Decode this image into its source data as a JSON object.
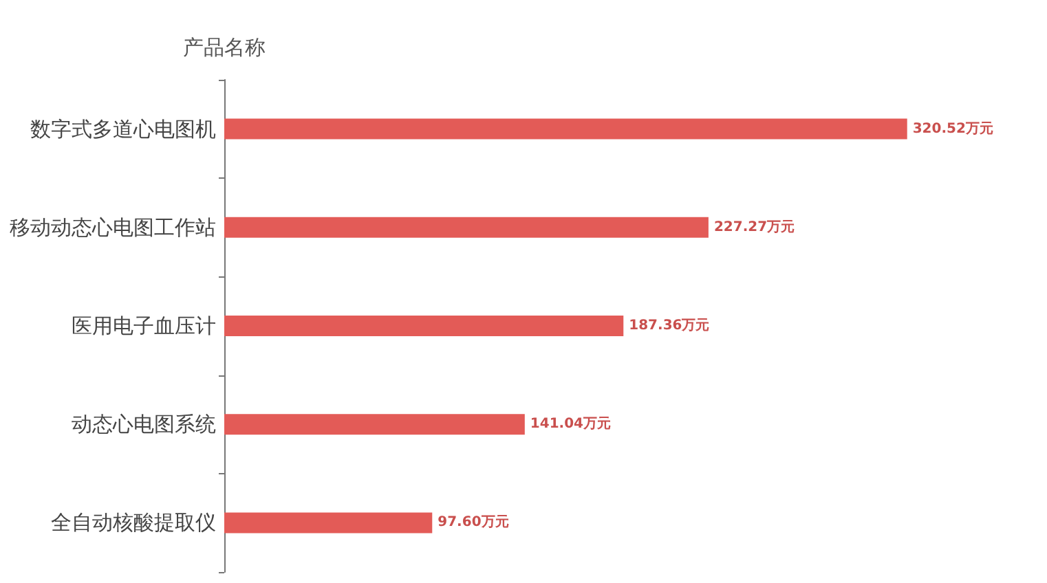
{
  "chart_data": {
    "type": "bar",
    "orientation": "horizontal",
    "ylabel": "产品名称",
    "categories": [
      "数字式多道心电图机",
      "移动动态心电图工作站",
      "医用电子血压计",
      "动态心电图系统",
      "全自动核酸提取仪"
    ],
    "values": [
      320.52,
      227.27,
      187.36,
      141.04,
      97.6
    ],
    "color": "#e35b57",
    "value_labels": [
      "320.52万元",
      "227.27万元",
      "187.36万元",
      "141.04万元",
      "97.60万元"
    ],
    "tick_labels": "y"
  }
}
